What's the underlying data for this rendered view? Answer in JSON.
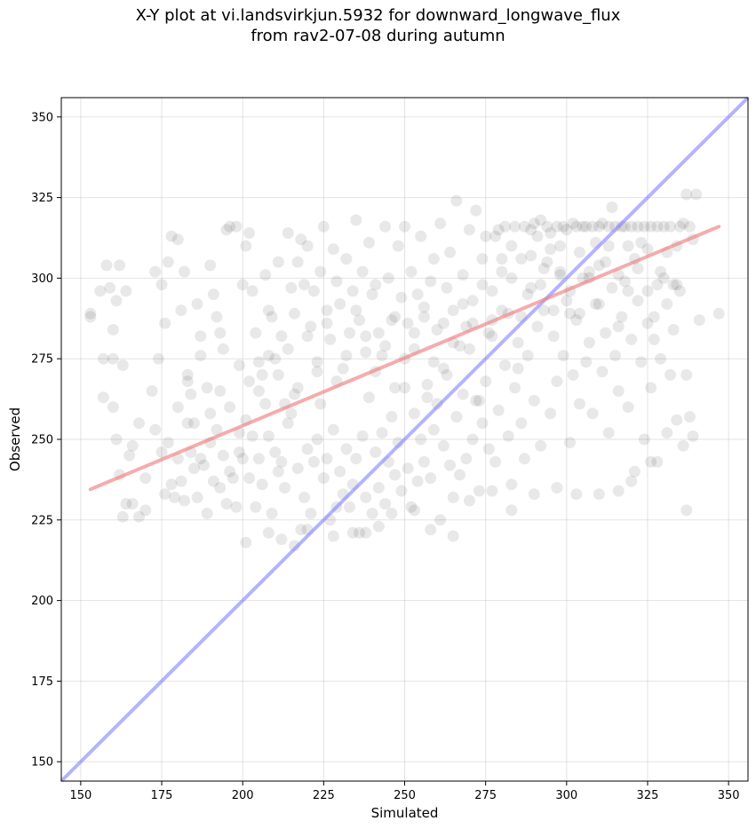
{
  "chart_data": {
    "type": "scatter",
    "title_lines": [
      "X-Y plot at vi.landsvirkjun.5932 for downward_longwave_flux",
      "from rav2-07-08 during autumn"
    ],
    "xlabel": "Simulated",
    "ylabel": "Observed",
    "xlim": [
      144,
      356
    ],
    "ylim": [
      144,
      356
    ],
    "xticks": [
      150,
      175,
      200,
      225,
      250,
      275,
      300,
      325,
      350
    ],
    "yticks": [
      150,
      175,
      200,
      225,
      250,
      275,
      300,
      325,
      350
    ],
    "grid": true,
    "colors": {
      "points": "#000000",
      "fit_line": "#f08080",
      "identity_line": "#8080ff"
    },
    "fit_line": {
      "x": [
        153,
        347
      ],
      "y": [
        234.5,
        316
      ]
    },
    "identity_line": {
      "x": [
        144,
        356
      ],
      "y": [
        144,
        356
      ]
    },
    "points": [
      [
        153,
        289
      ],
      [
        153,
        288
      ],
      [
        156,
        296
      ],
      [
        157,
        263
      ],
      [
        157,
        275
      ],
      [
        158,
        304
      ],
      [
        159,
        297
      ],
      [
        160,
        275
      ],
      [
        160,
        284
      ],
      [
        161,
        293
      ],
      [
        161,
        250
      ],
      [
        162,
        239
      ],
      [
        162,
        304
      ],
      [
        163,
        273
      ],
      [
        164,
        296
      ],
      [
        163,
        226
      ],
      [
        164,
        230
      ],
      [
        166,
        248
      ],
      [
        168,
        255
      ],
      [
        166,
        230
      ],
      [
        168,
        226
      ],
      [
        170,
        228
      ],
      [
        172,
        265
      ],
      [
        173,
        302
      ],
      [
        174,
        275
      ],
      [
        175,
        298
      ],
      [
        176,
        286
      ],
      [
        177,
        305
      ],
      [
        178,
        313
      ],
      [
        180,
        312
      ],
      [
        181,
        290
      ],
      [
        182,
        302
      ],
      [
        183,
        270
      ],
      [
        184,
        264
      ],
      [
        185,
        255
      ],
      [
        186,
        292
      ],
      [
        187,
        282
      ],
      [
        189,
        266
      ],
      [
        190,
        304
      ],
      [
        191,
        295
      ],
      [
        192,
        288
      ],
      [
        193,
        283
      ],
      [
        194,
        278
      ],
      [
        195,
        315
      ],
      [
        196,
        316
      ],
      [
        198,
        316
      ],
      [
        199,
        273
      ],
      [
        200,
        298
      ],
      [
        201,
        310
      ],
      [
        202,
        314
      ],
      [
        203,
        296
      ],
      [
        204,
        283
      ],
      [
        205,
        274
      ],
      [
        206,
        270
      ],
      [
        207,
        301
      ],
      [
        208,
        290
      ],
      [
        209,
        288
      ],
      [
        210,
        275
      ],
      [
        211,
        305
      ],
      [
        212,
        282
      ],
      [
        213,
        261
      ],
      [
        214,
        314
      ],
      [
        215,
        297
      ],
      [
        216,
        289
      ],
      [
        217,
        305
      ],
      [
        218,
        312
      ],
      [
        219,
        298
      ],
      [
        220,
        310
      ],
      [
        221,
        285
      ],
      [
        222,
        296
      ],
      [
        223,
        271
      ],
      [
        224,
        302
      ],
      [
        225,
        316
      ],
      [
        226,
        290
      ],
      [
        227,
        281
      ],
      [
        228,
        309
      ],
      [
        229,
        299
      ],
      [
        230,
        292
      ],
      [
        231,
        272
      ],
      [
        232,
        306
      ],
      [
        233,
        283
      ],
      [
        234,
        296
      ],
      [
        235,
        318
      ],
      [
        236,
        287
      ],
      [
        237,
        302
      ],
      [
        238,
        277
      ],
      [
        239,
        311
      ],
      [
        240,
        295
      ],
      [
        241,
        298
      ],
      [
        242,
        283
      ],
      [
        243,
        276
      ],
      [
        244,
        316
      ],
      [
        245,
        300
      ],
      [
        246,
        287
      ],
      [
        247,
        266
      ],
      [
        248,
        310
      ],
      [
        249,
        294
      ],
      [
        250,
        316
      ],
      [
        251,
        286
      ],
      [
        252,
        302
      ],
      [
        253,
        278
      ],
      [
        254,
        295
      ],
      [
        255,
        313
      ],
      [
        256,
        288
      ],
      [
        257,
        267
      ],
      [
        258,
        299
      ],
      [
        259,
        306
      ],
      [
        260,
        284
      ],
      [
        261,
        317
      ],
      [
        262,
        272
      ],
      [
        263,
        297
      ],
      [
        264,
        308
      ],
      [
        265,
        290
      ],
      [
        266,
        324
      ],
      [
        267,
        279
      ],
      [
        268,
        301
      ],
      [
        269,
        285
      ],
      [
        270,
        315
      ],
      [
        271,
        293
      ],
      [
        272,
        321
      ],
      [
        273,
        262
      ],
      [
        274,
        306
      ],
      [
        275,
        313
      ],
      [
        276,
        283
      ],
      [
        277,
        296
      ],
      [
        278,
        313
      ],
      [
        279,
        315
      ],
      [
        280,
        302
      ],
      [
        281,
        316
      ],
      [
        282,
        289
      ],
      [
        283,
        310
      ],
      [
        284,
        316
      ],
      [
        285,
        272
      ],
      [
        286,
        306
      ],
      [
        287,
        316
      ],
      [
        288,
        295
      ],
      [
        289,
        315
      ],
      [
        290,
        317
      ],
      [
        291,
        313
      ],
      [
        292,
        318
      ],
      [
        293,
        303
      ],
      [
        294,
        316
      ],
      [
        295,
        314
      ],
      [
        296,
        290
      ],
      [
        297,
        316
      ],
      [
        298,
        310
      ],
      [
        299,
        316
      ],
      [
        300,
        315
      ],
      [
        301,
        296
      ],
      [
        302,
        317
      ],
      [
        303,
        316
      ],
      [
        304,
        289
      ],
      [
        305,
        316
      ],
      [
        306,
        316
      ],
      [
        307,
        302
      ],
      [
        308,
        316
      ],
      [
        309,
        311
      ],
      [
        310,
        316
      ],
      [
        311,
        317
      ],
      [
        312,
        305
      ],
      [
        313,
        316
      ],
      [
        314,
        322
      ],
      [
        315,
        316
      ],
      [
        316,
        285
      ],
      [
        317,
        316
      ],
      [
        318,
        316
      ],
      [
        319,
        296
      ],
      [
        320,
        316
      ],
      [
        321,
        306
      ],
      [
        322,
        316
      ],
      [
        323,
        311
      ],
      [
        324,
        316
      ],
      [
        325,
        296
      ],
      [
        326,
        316
      ],
      [
        327,
        281
      ],
      [
        328,
        316
      ],
      [
        329,
        302
      ],
      [
        330,
        316
      ],
      [
        331,
        292
      ],
      [
        332,
        316
      ],
      [
        333,
        298
      ],
      [
        334,
        310
      ],
      [
        335,
        316
      ],
      [
        336,
        317
      ],
      [
        337,
        326
      ],
      [
        338,
        316
      ],
      [
        339,
        312
      ],
      [
        340,
        326
      ],
      [
        341,
        287
      ],
      [
        347,
        289
      ],
      [
        175,
        246
      ],
      [
        177,
        249
      ],
      [
        178,
        236
      ],
      [
        179,
        232
      ],
      [
        180,
        244
      ],
      [
        181,
        237
      ],
      [
        182,
        231
      ],
      [
        183,
        255
      ],
      [
        184,
        246
      ],
      [
        185,
        241
      ],
      [
        186,
        232
      ],
      [
        187,
        244
      ],
      [
        188,
        242
      ],
      [
        189,
        227
      ],
      [
        190,
        249
      ],
      [
        191,
        237
      ],
      [
        192,
        253
      ],
      [
        193,
        235
      ],
      [
        194,
        245
      ],
      [
        195,
        230
      ],
      [
        196,
        240
      ],
      [
        197,
        238
      ],
      [
        198,
        229
      ],
      [
        199,
        246
      ],
      [
        200,
        244
      ],
      [
        201,
        256
      ],
      [
        202,
        238
      ],
      [
        203,
        251
      ],
      [
        204,
        229
      ],
      [
        205,
        244
      ],
      [
        206,
        236
      ],
      [
        207,
        261
      ],
      [
        208,
        251
      ],
      [
        209,
        227
      ],
      [
        210,
        246
      ],
      [
        211,
        240
      ],
      [
        212,
        243
      ],
      [
        213,
        235
      ],
      [
        214,
        255
      ],
      [
        215,
        258
      ],
      [
        216,
        264
      ],
      [
        217,
        241
      ],
      [
        218,
        222
      ],
      [
        219,
        232
      ],
      [
        220,
        247
      ],
      [
        221,
        227
      ],
      [
        222,
        243
      ],
      [
        223,
        250
      ],
      [
        224,
        261
      ],
      [
        225,
        238
      ],
      [
        226,
        244
      ],
      [
        227,
        225
      ],
      [
        228,
        253
      ],
      [
        229,
        229
      ],
      [
        230,
        240
      ],
      [
        231,
        233
      ],
      [
        232,
        247
      ],
      [
        233,
        229
      ],
      [
        234,
        236
      ],
      [
        235,
        244
      ],
      [
        236,
        221
      ],
      [
        237,
        251
      ],
      [
        238,
        232
      ],
      [
        239,
        263
      ],
      [
        240,
        227
      ],
      [
        241,
        246
      ],
      [
        242,
        235
      ],
      [
        243,
        252
      ],
      [
        244,
        230
      ],
      [
        245,
        243
      ],
      [
        246,
        257
      ],
      [
        247,
        239
      ],
      [
        248,
        249
      ],
      [
        249,
        234
      ],
      [
        250,
        266
      ],
      [
        251,
        241
      ],
      [
        252,
        229
      ],
      [
        253,
        258
      ],
      [
        254,
        237
      ],
      [
        255,
        250
      ],
      [
        256,
        243
      ],
      [
        257,
        263
      ],
      [
        258,
        238
      ],
      [
        259,
        253
      ],
      [
        260,
        261
      ],
      [
        261,
        225
      ],
      [
        262,
        248
      ],
      [
        263,
        270
      ],
      [
        264,
        242
      ],
      [
        265,
        232
      ],
      [
        266,
        257
      ],
      [
        267,
        239
      ],
      [
        268,
        264
      ],
      [
        269,
        244
      ],
      [
        270,
        278
      ],
      [
        271,
        250
      ],
      [
        272,
        262
      ],
      [
        273,
        234
      ],
      [
        274,
        255
      ],
      [
        275,
        268
      ],
      [
        276,
        247
      ],
      [
        277,
        282
      ],
      [
        278,
        243
      ],
      [
        279,
        259
      ],
      [
        280,
        290
      ],
      [
        281,
        273
      ],
      [
        282,
        251
      ],
      [
        283,
        236
      ],
      [
        284,
        266
      ],
      [
        285,
        280
      ],
      [
        286,
        255
      ],
      [
        287,
        244
      ],
      [
        288,
        276
      ],
      [
        289,
        297
      ],
      [
        290,
        262
      ],
      [
        291,
        285
      ],
      [
        292,
        248
      ],
      [
        293,
        290
      ],
      [
        294,
        305
      ],
      [
        295,
        258
      ],
      [
        296,
        282
      ],
      [
        297,
        268
      ],
      [
        298,
        301
      ],
      [
        299,
        276
      ],
      [
        300,
        293
      ],
      [
        301,
        249
      ],
      [
        302,
        270
      ],
      [
        303,
        287
      ],
      [
        304,
        261
      ],
      [
        305,
        300
      ],
      [
        306,
        274
      ],
      [
        307,
        280
      ],
      [
        308,
        258
      ],
      [
        309,
        292
      ],
      [
        310,
        304
      ],
      [
        311,
        271
      ],
      [
        312,
        283
      ],
      [
        313,
        252
      ],
      [
        314,
        297
      ],
      [
        315,
        276
      ],
      [
        316,
        265
      ],
      [
        317,
        288
      ],
      [
        318,
        299
      ],
      [
        319,
        260
      ],
      [
        320,
        281
      ],
      [
        321,
        240
      ],
      [
        322,
        293
      ],
      [
        323,
        274
      ],
      [
        324,
        250
      ],
      [
        325,
        286
      ],
      [
        326,
        266
      ],
      [
        327,
        288
      ],
      [
        328,
        243
      ],
      [
        329,
        275
      ],
      [
        330,
        300
      ],
      [
        331,
        252
      ],
      [
        332,
        270
      ],
      [
        333,
        284
      ],
      [
        334,
        256
      ],
      [
        335,
        296
      ],
      [
        336,
        248
      ],
      [
        337,
        270
      ],
      [
        338,
        257
      ],
      [
        337,
        228
      ],
      [
        339,
        251
      ],
      [
        160,
        260
      ],
      [
        165,
        245
      ],
      [
        170,
        238
      ],
      [
        173,
        253
      ],
      [
        176,
        233
      ],
      [
        180,
        260
      ],
      [
        183,
        268
      ],
      [
        187,
        276
      ],
      [
        190,
        258
      ],
      [
        193,
        265
      ],
      [
        196,
        260
      ],
      [
        199,
        252
      ],
      [
        202,
        268
      ],
      [
        205,
        265
      ],
      [
        208,
        276
      ],
      [
        211,
        270
      ],
      [
        214,
        278
      ],
      [
        217,
        266
      ],
      [
        220,
        282
      ],
      [
        223,
        274
      ],
      [
        226,
        286
      ],
      [
        229,
        268
      ],
      [
        232,
        276
      ],
      [
        235,
        290
      ],
      [
        238,
        282
      ],
      [
        241,
        271
      ],
      [
        244,
        279
      ],
      [
        247,
        288
      ],
      [
        250,
        275
      ],
      [
        253,
        283
      ],
      [
        256,
        291
      ],
      [
        259,
        274
      ],
      [
        262,
        286
      ],
      [
        265,
        280
      ],
      [
        268,
        292
      ],
      [
        271,
        286
      ],
      [
        274,
        298
      ],
      [
        277,
        287
      ],
      [
        280,
        306
      ],
      [
        283,
        300
      ],
      [
        286,
        288
      ],
      [
        289,
        307
      ],
      [
        292,
        298
      ],
      [
        295,
        309
      ],
      [
        298,
        302
      ],
      [
        301,
        289
      ],
      [
        304,
        308
      ],
      [
        307,
        300
      ],
      [
        310,
        292
      ],
      [
        313,
        310
      ],
      [
        316,
        301
      ],
      [
        319,
        310
      ],
      [
        322,
        303
      ],
      [
        325,
        309
      ],
      [
        328,
        298
      ],
      [
        331,
        308
      ],
      [
        334,
        298
      ],
      [
        201,
        218
      ],
      [
        208,
        221
      ],
      [
        212,
        219
      ],
      [
        216,
        217
      ],
      [
        220,
        222
      ],
      [
        228,
        220
      ],
      [
        234,
        221
      ],
      [
        238,
        221
      ],
      [
        242,
        223
      ],
      [
        246,
        227
      ],
      [
        253,
        228
      ],
      [
        258,
        222
      ],
      [
        265,
        220
      ],
      [
        270,
        231
      ],
      [
        277,
        234
      ],
      [
        283,
        228
      ],
      [
        290,
        233
      ],
      [
        297,
        235
      ],
      [
        303,
        233
      ],
      [
        310,
        233
      ],
      [
        316,
        234
      ],
      [
        320,
        237
      ],
      [
        326,
        243
      ]
    ]
  }
}
